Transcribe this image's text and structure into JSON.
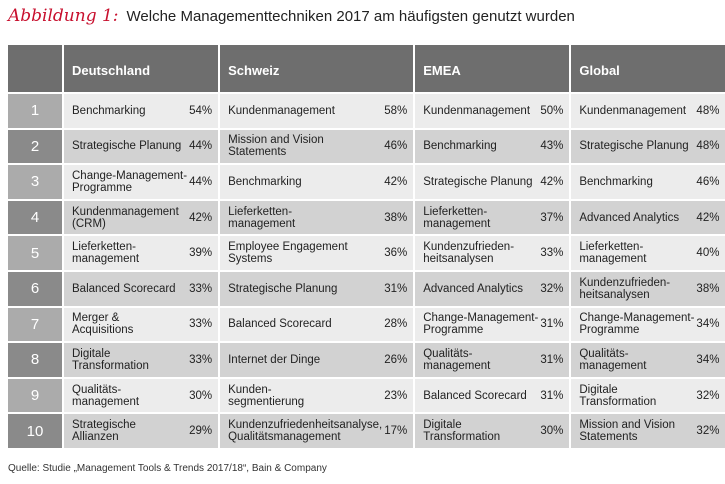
{
  "header": {
    "label": "Abbildung 1:",
    "title": "Welche Managementtechniken 2017 am häufigsten genutzt wurden"
  },
  "table": {
    "columns": [
      "Deutschland",
      "Schweiz",
      "EMEA",
      "Global"
    ],
    "rows": [
      {
        "rank": 1,
        "cells": [
          {
            "name": "Benchmarking",
            "share": "54%"
          },
          {
            "name": "Kundenmanagement",
            "share": "58%"
          },
          {
            "name": "Kundenmanagement",
            "share": "50%"
          },
          {
            "name": "Kundenmanagement",
            "share": "48%"
          }
        ]
      },
      {
        "rank": 2,
        "cells": [
          {
            "name": "Strategische Planung",
            "share": "44%"
          },
          {
            "name": "Mission and Vision\nStatements",
            "share": "46%"
          },
          {
            "name": "Benchmarking",
            "share": "43%"
          },
          {
            "name": "Strategische Planung",
            "share": "48%"
          }
        ]
      },
      {
        "rank": 3,
        "cells": [
          {
            "name": "Change-Management-\nProgramme",
            "share": "44%"
          },
          {
            "name": "Benchmarking",
            "share": "42%"
          },
          {
            "name": "Strategische Planung",
            "share": "42%"
          },
          {
            "name": "Benchmarking",
            "share": "46%"
          }
        ]
      },
      {
        "rank": 4,
        "cells": [
          {
            "name": "Kundenmanagement\n(CRM)",
            "share": "42%"
          },
          {
            "name": "Lieferketten-\nmanagement",
            "share": "38%"
          },
          {
            "name": "Lieferketten-\nmanagement",
            "share": "37%"
          },
          {
            "name": "Advanced Analytics",
            "share": "42%"
          }
        ]
      },
      {
        "rank": 5,
        "cells": [
          {
            "name": "Lieferketten-\nmanagement",
            "share": "39%"
          },
          {
            "name": "Employee Engagement\nSystems",
            "share": "36%"
          },
          {
            "name": "Kundenzufrieden-\nheitsanalysen",
            "share": "33%"
          },
          {
            "name": "Lieferketten-\nmanagement",
            "share": "40%"
          }
        ]
      },
      {
        "rank": 6,
        "cells": [
          {
            "name": "Balanced Scorecard",
            "share": "33%"
          },
          {
            "name": "Strategische Planung",
            "share": "31%"
          },
          {
            "name": "Advanced Analytics",
            "share": "32%"
          },
          {
            "name": "Kundenzufrieden-\nheitsanalysen",
            "share": "38%"
          }
        ]
      },
      {
        "rank": 7,
        "cells": [
          {
            "name": "Merger &\nAcquisitions",
            "share": "33%"
          },
          {
            "name": "Balanced Scorecard",
            "share": "28%"
          },
          {
            "name": "Change-Management-\nProgramme",
            "share": "31%"
          },
          {
            "name": "Change-Management-\nProgramme",
            "share": "34%"
          }
        ]
      },
      {
        "rank": 8,
        "cells": [
          {
            "name": "Digitale\nTransformation",
            "share": "33%"
          },
          {
            "name": "Internet der Dinge",
            "share": "26%"
          },
          {
            "name": "Qualitäts-\nmanagement",
            "share": "31%"
          },
          {
            "name": "Qualitäts-\nmanagement",
            "share": "34%"
          }
        ]
      },
      {
        "rank": 9,
        "cells": [
          {
            "name": "Qualitäts-\nmanagement",
            "share": "30%"
          },
          {
            "name": "Kunden-\nsegmentierung",
            "share": "23%"
          },
          {
            "name": "Balanced Scorecard",
            "share": "31%"
          },
          {
            "name": "Digitale\nTransformation",
            "share": "32%"
          }
        ]
      },
      {
        "rank": 10,
        "cells": [
          {
            "name": "Strategische\nAllianzen",
            "share": "29%"
          },
          {
            "name": "Kundenzufriedenheitsanalyse,\nQualitätsmanagement",
            "share": "17%"
          },
          {
            "name": "Digitale\nTransformation",
            "share": "30%"
          },
          {
            "name": "Mission and Vision\nStatements",
            "share": "32%"
          }
        ]
      }
    ]
  },
  "source": "Quelle: Studie „Management Tools & Trends 2017/18“, Bain & Company"
}
